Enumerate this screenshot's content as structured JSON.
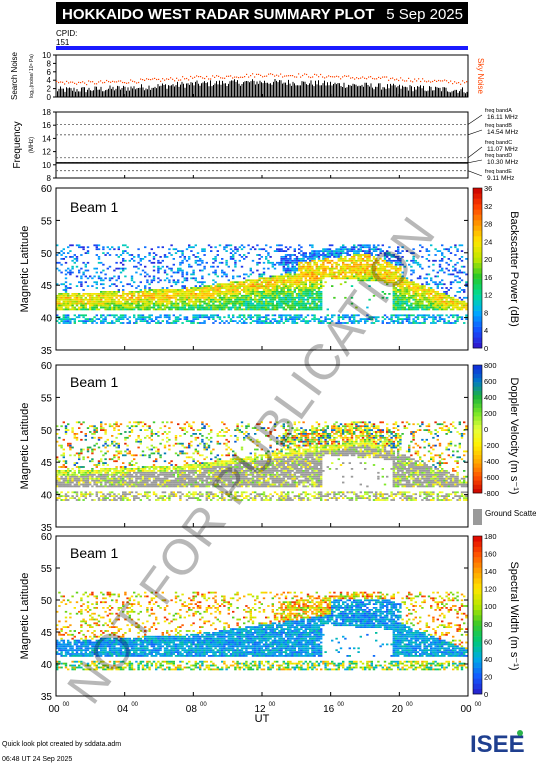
{
  "header": {
    "title": "HOKKAIDO WEST RADAR SUMMARY PLOT",
    "date": "5 Sep 2025",
    "cpid_label": "CPID:",
    "cpid_value": "151"
  },
  "colors": {
    "header_bg": "#000000",
    "cpid_bar": "#1a1aff",
    "noise_sky": "#ff4400",
    "noise_search": "#000000",
    "ground_scatter": "#9a9a9a"
  },
  "watermark": "NOT FOR PUBLICATION",
  "x_axis": {
    "label": "UT",
    "ticks": [
      {
        "hour": 0,
        "text": "00",
        "sup": "00"
      },
      {
        "hour": 4,
        "text": "04",
        "sup": "00"
      },
      {
        "hour": 8,
        "text": "08",
        "sup": "00"
      },
      {
        "hour": 12,
        "text": "12",
        "sup": "00"
      },
      {
        "hour": 16,
        "text": "16",
        "sup": "00"
      },
      {
        "hour": 20,
        "text": "20",
        "sup": "00"
      },
      {
        "hour": 24,
        "text": "00",
        "sup": "00"
      }
    ]
  },
  "footer": {
    "credit": "Quick look plot created by sddata.adm",
    "timestamp": "06:48 UT 24 Sep 2025",
    "logo_text": "ISEE"
  },
  "chart_data": [
    {
      "type": "line",
      "panel": "noise",
      "ylabel": "Search Noise",
      "ylabel_sub": "log₁₀(noise/ 10⁶ Pa)",
      "right_label": "Sky Noise",
      "ylim": [
        0,
        10
      ],
      "yticks": [
        0,
        2,
        4,
        6,
        8,
        10
      ],
      "series": [
        {
          "name": "Sky Noise",
          "x": [
            0,
            2,
            4,
            6,
            8,
            10,
            12,
            14,
            16,
            18,
            20,
            22,
            24
          ],
          "values": [
            3.6,
            3.5,
            3.8,
            4.2,
            4.7,
            5.0,
            5.4,
            5.3,
            5.0,
            4.6,
            4.4,
            3.9,
            3.5
          ]
        },
        {
          "name": "Search Noise",
          "x": [
            0,
            2,
            4,
            6,
            8,
            10,
            12,
            14,
            16,
            18,
            20,
            22,
            24
          ],
          "values": [
            1.7,
            1.8,
            2.1,
            2.6,
            3.1,
            3.4,
            3.6,
            3.4,
            3.1,
            2.7,
            2.3,
            1.9,
            1.6
          ]
        }
      ]
    },
    {
      "type": "line",
      "panel": "frequency",
      "ylabel": "Frequency",
      "ylabel_sub": "(MHz)",
      "ylim": [
        8,
        18
      ],
      "yticks": [
        8,
        10,
        12,
        14,
        16,
        18
      ],
      "bands": [
        {
          "name": "freq bandA",
          "freq": "16.11 MHz",
          "value": 16.11
        },
        {
          "name": "freq bandB",
          "freq": "14.54 MHz",
          "value": 14.54
        },
        {
          "name": "freq bandC",
          "freq": "11.07 MHz",
          "value": 11.07
        },
        {
          "name": "freq bandD",
          "freq": "10.30 MHz",
          "value": 10.3
        },
        {
          "name": "freq bandE",
          "freq": "9.11 MHz",
          "value": 9.11
        }
      ],
      "active_band": 10.3
    },
    {
      "type": "heatmap",
      "panel": "power",
      "beam_label": "Beam  1",
      "ylabel": "Magnetic Latitude",
      "ylim": [
        35,
        60
      ],
      "yticks": [
        35,
        40,
        45,
        50,
        55,
        60
      ],
      "colorbar": {
        "label": "Backscatter Power (dB)",
        "range": [
          0,
          36
        ],
        "ticks": [
          "0",
          "4",
          "8",
          "12",
          "16",
          "20",
          "24",
          "28",
          "32",
          "36"
        ]
      }
    },
    {
      "type": "heatmap",
      "panel": "velocity",
      "beam_label": "Beam  1",
      "ylabel": "Magnetic Latitude",
      "ylim": [
        35,
        60
      ],
      "yticks": [
        35,
        40,
        45,
        50,
        55,
        60
      ],
      "colorbar": {
        "label": "Doppler Velocity (m s⁻¹)",
        "range": [
          -800,
          800
        ],
        "ticks": [
          "-800",
          "-600",
          "-400",
          "-200",
          "0",
          "200",
          "400",
          "600",
          "800"
        ],
        "ground_scatter_label": "Ground Scatter"
      }
    },
    {
      "type": "heatmap",
      "panel": "width",
      "beam_label": "Beam  1",
      "ylabel": "Magnetic Latitude",
      "ylim": [
        35,
        60
      ],
      "yticks": [
        35,
        40,
        45,
        50,
        55,
        60
      ],
      "colorbar": {
        "label": "Spectral Width (m s⁻¹)",
        "range": [
          0,
          180
        ],
        "ticks": [
          "0",
          "20",
          "40",
          "60",
          "80",
          "100",
          "120",
          "140",
          "160",
          "180"
        ]
      }
    }
  ]
}
